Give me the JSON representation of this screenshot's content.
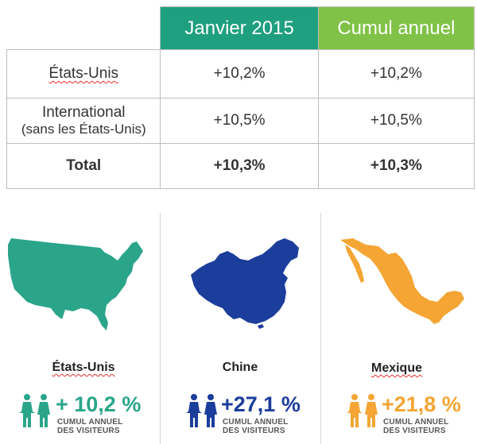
{
  "table": {
    "headers": [
      "Janvier 2015",
      "Cumul annuel"
    ],
    "rows": [
      {
        "label": "États-Unis",
        "january": "+10,2%",
        "cumulative": "+10,2%"
      },
      {
        "label_line1": "International",
        "label_line2": "(sans les États-Unis)",
        "january": "+10,5%",
        "cumulative": "+10,5%"
      },
      {
        "label": "Total",
        "january": "+10,3%",
        "cumulative": "+10,3%"
      }
    ]
  },
  "countries": [
    {
      "name": "États-Unis",
      "value": "+ 10,2 %",
      "caption_line1": "CUMUL ANNUEL",
      "caption_line2": "DES VISITEURS",
      "color": "#2aa58a"
    },
    {
      "name": "Chine",
      "value": "+27,1 %",
      "caption_line1": "CUMUL ANNUEL",
      "caption_line2": "DES VISITEURS",
      "color": "#1b3d9b"
    },
    {
      "name": "Mexique",
      "value": "+21,8 %",
      "caption_line1": "CUMUL ANNUEL",
      "caption_line2": "DES VISITEURS",
      "color": "#f4a534"
    }
  ],
  "colors": {
    "header_january": "#1e9f7f",
    "header_cumulative": "#80c247"
  }
}
